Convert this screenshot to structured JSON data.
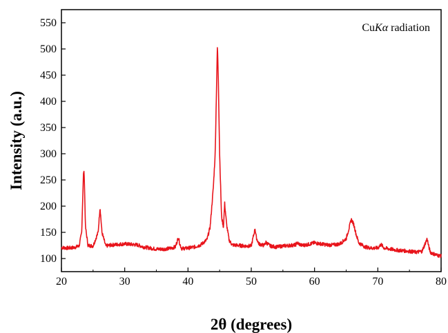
{
  "chart_data": {
    "type": "line",
    "xlabel": "2θ (degrees)",
    "ylabel": "Intensity (a.u.)",
    "xlim": [
      20,
      80
    ],
    "ylim": [
      75,
      575
    ],
    "xticks": [
      20,
      30,
      40,
      50,
      60,
      70,
      80
    ],
    "yticks": [
      100,
      150,
      200,
      250,
      300,
      350,
      400,
      450,
      500,
      550
    ],
    "grid": false,
    "line_color": "#e8141b",
    "annotation": {
      "prefix": "Cu",
      "italic": "K",
      "symbol": "α",
      "suffix": " radiation"
    },
    "series": [
      {
        "x": [
          20,
          21,
          22,
          22.8,
          23.2,
          23.5,
          23.6,
          23.8,
          24.2,
          25,
          25.8,
          26.1,
          26.4,
          27,
          28,
          29,
          30,
          31,
          32,
          33,
          34,
          35,
          36,
          37,
          38,
          38.5,
          38.7,
          39,
          40,
          41,
          42,
          43,
          43.5,
          44,
          44.3,
          44.5,
          44.65,
          44.8,
          45,
          45.3,
          45.6,
          45.8,
          46.1,
          46.5,
          47,
          48,
          49,
          50,
          50.6,
          50.8,
          51.2,
          52,
          52.3,
          53,
          54,
          55,
          56,
          57,
          57.2,
          58,
          59,
          60,
          61,
          62,
          63,
          64,
          65,
          65.5,
          65.8,
          66.2,
          66.6,
          67,
          68,
          69,
          70,
          70.5,
          71,
          72,
          73,
          74,
          75,
          76,
          77,
          77.8,
          78,
          78.3,
          79,
          79.5,
          80
        ],
        "y": [
          121,
          120,
          121,
          124,
          150,
          268,
          260,
          160,
          125,
          124,
          150,
          198,
          150,
          124,
          126,
          127,
          128,
          127,
          126,
          122,
          120,
          118,
          118,
          119,
          122,
          141,
          128,
          119,
          120,
          122,
          126,
          136,
          160,
          235,
          300,
          420,
          508,
          440,
          300,
          180,
          160,
          205,
          165,
          135,
          126,
          125,
          124,
          124,
          157,
          140,
          128,
          125,
          131,
          124,
          122,
          124,
          125,
          126,
          130,
          125,
          127,
          130,
          128,
          126,
          126,
          128,
          138,
          160,
          175,
          165,
          145,
          130,
          122,
          120,
          120,
          127,
          120,
          118,
          116,
          115,
          114,
          112,
          114,
          138,
          125,
          112,
          108,
          106,
          105
        ]
      }
    ]
  }
}
